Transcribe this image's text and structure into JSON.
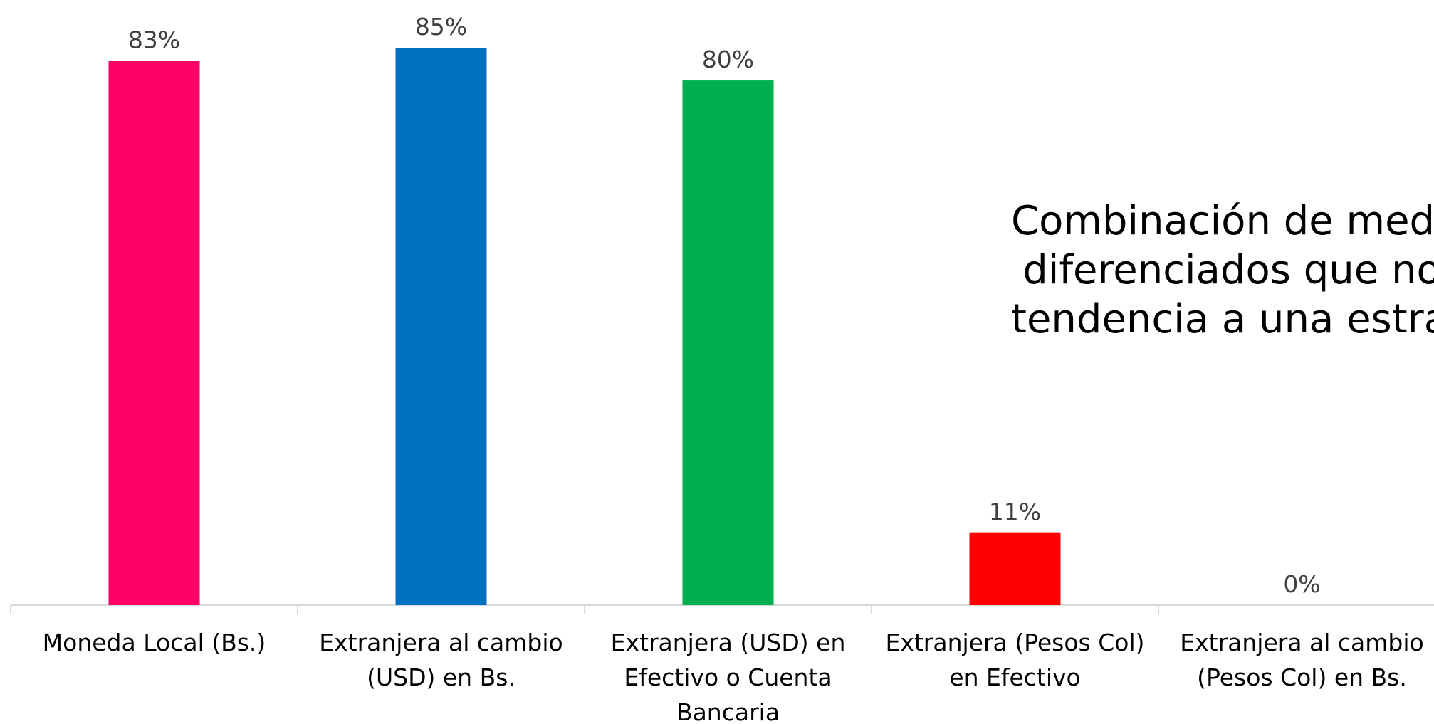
{
  "chart_data": {
    "type": "bar",
    "categories": [
      "Moneda Local (Bs.)",
      "Extranjera al cambio (USD) en Bs.",
      "Extranjera (USD) en Efectivo o Cuenta Bancaria",
      "Extranjera (Pesos Col) en Efectivo",
      "Extranjera al cambio (Pesos Col) en Bs."
    ],
    "category_lines": [
      [
        "Moneda Local (Bs.)"
      ],
      [
        "Extranjera al cambio",
        "(USD) en Bs."
      ],
      [
        "Extranjera (USD) en",
        "Efectivo o Cuenta",
        "Bancaria"
      ],
      [
        "Extranjera (Pesos Col)",
        "en Efectivo"
      ],
      [
        "Extranjera al cambio",
        "(Pesos Col) en Bs."
      ]
    ],
    "values": [
      83,
      85,
      80,
      11,
      0
    ],
    "data_labels": [
      "83%",
      "85%",
      "80%",
      "11%",
      "0%"
    ],
    "colors": [
      "#FF0066",
      "#0070C0",
      "#00B050",
      "#FF0000",
      "#FFC000"
    ],
    "axis_color": "#D9D9D9",
    "ylim": [
      0,
      85
    ],
    "grid": false,
    "legend": "none",
    "annotation_lines": [
      "Combinación de medio",
      "diferenciados que no",
      "tendencia a una estrat"
    ]
  }
}
